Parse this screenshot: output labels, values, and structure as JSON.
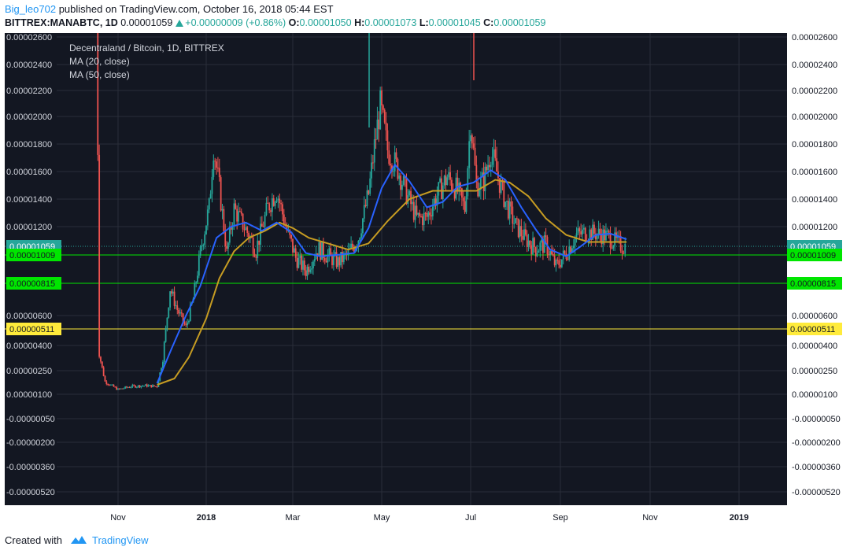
{
  "header": {
    "author": "Big_leo702",
    "published_text": "published on TradingView.com, October 16, 2018 05:44 EST",
    "symbol": "BITTREX:MANABTC, 1D",
    "last": "0.00001059",
    "change": "+0.00000009 (+0.86%)",
    "o_label": "O:",
    "o_val": "0.00001050",
    "h_label": "H:",
    "h_val": "0.00001073",
    "l_label": "L:",
    "l_val": "0.00001045",
    "c_label": "C:",
    "c_val": "0.00001059"
  },
  "legend": {
    "title": "Decentraland / Bitcoin, 1D, BITTREX",
    "ma20": "MA (20, close)",
    "ma50": "MA (50, close)"
  },
  "footer": {
    "created": "Created with",
    "brand": "TradingView"
  },
  "colors": {
    "background": "#131722",
    "grid": "#2a2e39",
    "up": "#26a69a",
    "down": "#ef5350",
    "ma20": "#2962ff",
    "ma50": "#c69c22",
    "green_line": "#00e600",
    "yellow_line": "#ffeb3b",
    "axis_bg": "#ffffff",
    "axis_text": "#131722"
  },
  "chart_data": {
    "type": "candlestick",
    "title": "Decentraland / Bitcoin, 1D, BITTREX",
    "scale": "custom (non-linear, as printed tick labels)",
    "y_ticks": [
      "0.00002600",
      "0.00002400",
      "0.00002200",
      "0.00002000",
      "0.00001800",
      "0.00001600",
      "0.00001400",
      "0.00001200",
      "0.00000600",
      "0.00000400",
      "0.00000250",
      "0.00000100",
      "-0.00000050",
      "-0.00000200",
      "-0.00000360",
      "-0.00000520"
    ],
    "x_ticks": [
      "Nov",
      "2018",
      "Mar",
      "May",
      "Jul",
      "Sep",
      "Nov",
      "2019"
    ],
    "price_labels": [
      {
        "value": "0.00001059",
        "color": "#26a69a",
        "text_color": "#ffffff",
        "style": "dotted",
        "name": "last-price"
      },
      {
        "value": "0.00001009",
        "color": "#00e600",
        "text_color": "#131722",
        "style": "solid",
        "name": "support-1"
      },
      {
        "value": "0.00000815",
        "color": "#00e600",
        "text_color": "#131722",
        "style": "solid",
        "name": "support-2"
      },
      {
        "value": "0.00000511",
        "color": "#ffeb3b",
        "text_color": "#131722",
        "style": "solid",
        "name": "support-3"
      }
    ],
    "price_series": [
      [
        "2017-10-17",
        3.2e-05
      ],
      [
        "2017-10-19",
        3.5e-06
      ],
      [
        "2017-10-23",
        1.8e-06
      ],
      [
        "2017-11-01",
        1.3e-06
      ],
      [
        "2017-11-10",
        1.5e-06
      ],
      [
        "2017-11-20",
        1.55e-06
      ],
      [
        "2017-11-28",
        1.5e-06
      ],
      [
        "2017-12-02",
        3.2e-06
      ],
      [
        "2017-12-07",
        7.8e-06
      ],
      [
        "2017-12-12",
        6.4e-06
      ],
      [
        "2017-12-18",
        5.2e-06
      ],
      [
        "2017-12-23",
        7.1e-06
      ],
      [
        "2017-12-28",
        1.02e-05
      ],
      [
        "2018-01-03",
        1.34e-05
      ],
      [
        "2018-01-06",
        1.78e-05
      ],
      [
        "2018-01-10",
        1.48e-05
      ],
      [
        "2018-01-15",
        1.01e-05
      ],
      [
        "2018-01-20",
        1.33e-05
      ],
      [
        "2018-01-28",
        1.18e-05
      ],
      [
        "2018-02-04",
        1.04e-05
      ],
      [
        "2018-02-12",
        1.34e-05
      ],
      [
        "2018-02-18",
        1.46e-05
      ],
      [
        "2018-02-25",
        1.17e-05
      ],
      [
        "2018-03-03",
        9.9e-06
      ],
      [
        "2018-03-10",
        9e-06
      ],
      [
        "2018-03-18",
        1.05e-05
      ],
      [
        "2018-03-25",
        1e-05
      ],
      [
        "2018-04-01",
        9.6e-06
      ],
      [
        "2018-04-08",
        1.01e-05
      ],
      [
        "2018-04-15",
        1.12e-05
      ],
      [
        "2018-04-22",
        1.44e-05
      ],
      [
        "2018-04-26",
        1.78e-05
      ],
      [
        "2018-04-30",
        2.08e-05
      ],
      [
        "2018-05-05",
        1.76e-05
      ],
      [
        "2018-05-12",
        1.62e-05
      ],
      [
        "2018-05-18",
        1.44e-05
      ],
      [
        "2018-05-25",
        1.26e-05
      ],
      [
        "2018-06-01",
        1.27e-05
      ],
      [
        "2018-06-08",
        1.43e-05
      ],
      [
        "2018-06-15",
        1.56e-05
      ],
      [
        "2018-06-22",
        1.46e-05
      ],
      [
        "2018-06-27",
        1.33e-05
      ],
      [
        "2018-07-01",
        1.98e-05
      ],
      [
        "2018-07-05",
        1.5e-05
      ],
      [
        "2018-07-10",
        1.53e-05
      ],
      [
        "2018-07-15",
        1.75e-05
      ],
      [
        "2018-07-20",
        1.56e-05
      ],
      [
        "2018-07-25",
        1.38e-05
      ],
      [
        "2018-08-01",
        1.21e-05
      ],
      [
        "2018-08-08",
        1.11e-05
      ],
      [
        "2018-08-15",
        1.05e-05
      ],
      [
        "2018-08-22",
        1.08e-05
      ],
      [
        "2018-08-29",
        9.3e-06
      ],
      [
        "2018-09-05",
        1.02e-05
      ],
      [
        "2018-09-12",
        1.14e-05
      ],
      [
        "2018-09-19",
        1.16e-05
      ],
      [
        "2018-09-26",
        1.15e-05
      ],
      [
        "2018-10-03",
        1.13e-05
      ],
      [
        "2018-10-10",
        1.08e-05
      ],
      [
        "2018-10-16",
        1.059e-05
      ]
    ],
    "ma20": [
      [
        "2017-11-28",
        1.7e-06
      ],
      [
        "2017-12-08",
        3.8e-06
      ],
      [
        "2017-12-18",
        6e-06
      ],
      [
        "2017-12-28",
        8e-06
      ],
      [
        "2018-01-08",
        1.12e-05
      ],
      [
        "2018-01-18",
        1.2e-05
      ],
      [
        "2018-01-28",
        1.23e-05
      ],
      [
        "2018-02-08",
        1.17e-05
      ],
      [
        "2018-02-18",
        1.23e-05
      ],
      [
        "2018-02-28",
        1.16e-05
      ],
      [
        "2018-03-10",
        1.02e-05
      ],
      [
        "2018-03-20",
        1e-05
      ],
      [
        "2018-04-01",
        1.01e-05
      ],
      [
        "2018-04-12",
        1.02e-05
      ],
      [
        "2018-04-22",
        1.19e-05
      ],
      [
        "2018-05-01",
        1.48e-05
      ],
      [
        "2018-05-10",
        1.65e-05
      ],
      [
        "2018-05-20",
        1.53e-05
      ],
      [
        "2018-06-01",
        1.34e-05
      ],
      [
        "2018-06-12",
        1.38e-05
      ],
      [
        "2018-06-22",
        1.49e-05
      ],
      [
        "2018-07-03",
        1.52e-05
      ],
      [
        "2018-07-15",
        1.61e-05
      ],
      [
        "2018-07-25",
        1.54e-05
      ],
      [
        "2018-08-05",
        1.34e-05
      ],
      [
        "2018-08-15",
        1.18e-05
      ],
      [
        "2018-08-25",
        1.04e-05
      ],
      [
        "2018-09-05",
        1e-05
      ],
      [
        "2018-09-15",
        1.06e-05
      ],
      [
        "2018-09-25",
        1.14e-05
      ],
      [
        "2018-10-05",
        1.15e-05
      ],
      [
        "2018-10-16",
        1.11e-05
      ]
    ],
    "ma50": [
      [
        "2017-11-28",
        1.6e-06
      ],
      [
        "2017-12-10",
        2e-06
      ],
      [
        "2017-12-20",
        3.3e-06
      ],
      [
        "2018-01-01",
        5.8e-06
      ],
      [
        "2018-01-10",
        8.5e-06
      ],
      [
        "2018-01-20",
        1.03e-05
      ],
      [
        "2018-01-30",
        1.12e-05
      ],
      [
        "2018-02-10",
        1.17e-05
      ],
      [
        "2018-02-20",
        1.23e-05
      ],
      [
        "2018-03-01",
        1.19e-05
      ],
      [
        "2018-03-12",
        1.12e-05
      ],
      [
        "2018-03-25",
        1.08e-05
      ],
      [
        "2018-04-08",
        1.04e-05
      ],
      [
        "2018-04-22",
        1.08e-05
      ],
      [
        "2018-05-05",
        1.24e-05
      ],
      [
        "2018-05-20",
        1.4e-05
      ],
      [
        "2018-06-05",
        1.46e-05
      ],
      [
        "2018-06-20",
        1.46e-05
      ],
      [
        "2018-07-05",
        1.46e-05
      ],
      [
        "2018-07-18",
        1.54e-05
      ],
      [
        "2018-07-28",
        1.52e-05
      ],
      [
        "2018-08-10",
        1.42e-05
      ],
      [
        "2018-08-22",
        1.26e-05
      ],
      [
        "2018-09-05",
        1.14e-05
      ],
      [
        "2018-09-20",
        1.09e-05
      ],
      [
        "2018-10-05",
        1.09e-05
      ],
      [
        "2018-10-16",
        1.09e-05
      ]
    ]
  }
}
